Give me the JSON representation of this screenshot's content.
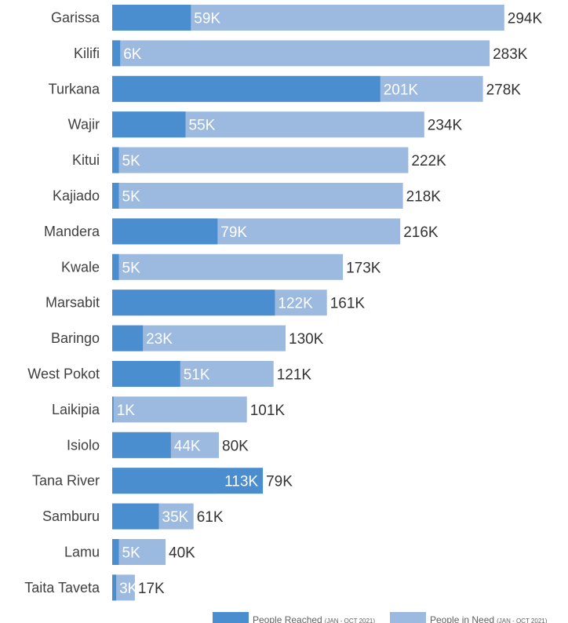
{
  "chart_data": {
    "type": "bar",
    "orientation": "horizontal",
    "categories": [
      "Garissa",
      "Kilifi",
      "Turkana",
      "Wajir",
      "Kitui",
      "Kajiado",
      "Mandera",
      "Kwale",
      "Marsabit",
      "Baringo",
      "West Pokot",
      "Laikipia",
      "Isiolo",
      "Tana River",
      "Samburu",
      "Lamu",
      "Taita Taveta"
    ],
    "series": [
      {
        "name": "People in Need",
        "name_suffix": "(JAN - OCT 2021)",
        "color": "#9cb9e0",
        "values": [
          294,
          283,
          278,
          234,
          222,
          218,
          216,
          173,
          161,
          130,
          121,
          101,
          80,
          79,
          61,
          40,
          17
        ],
        "labels": [
          "294K",
          "283K",
          "278K",
          "234K",
          "222K",
          "218K",
          "216K",
          "173K",
          "161K",
          "130K",
          "121K",
          "101K",
          "80K",
          "79K",
          "61K",
          "40K",
          "17K"
        ]
      },
      {
        "name": "People Reached",
        "name_suffix": "(JAN - OCT 2021)",
        "color": "#4b8ecf",
        "values": [
          59,
          6,
          201,
          55,
          5,
          5,
          79,
          5,
          122,
          23,
          51,
          1,
          44,
          113,
          35,
          5,
          3
        ],
        "labels": [
          "59K",
          "6K",
          "201K",
          "55K",
          "5K",
          "5K",
          "79K",
          "5K",
          "122K",
          "23K",
          "51K",
          "1K",
          "44K",
          "113K",
          "35K",
          "5K",
          "3K"
        ]
      }
    ],
    "unit": "K",
    "xlim": [
      0,
      294
    ],
    "grid": false,
    "legend_position": "bottom-right"
  }
}
